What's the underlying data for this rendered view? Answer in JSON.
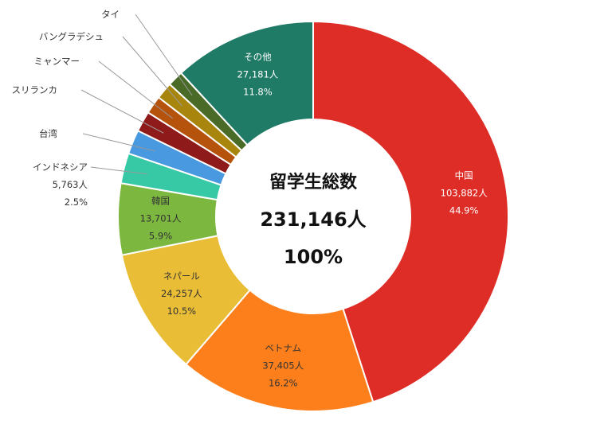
{
  "chart_data": {
    "type": "pie",
    "donut": true,
    "center": {
      "title": "留学生総数",
      "total": "231,146人",
      "percent": "100%"
    },
    "slices": [
      {
        "name": "中国",
        "count": "103,882人",
        "pct": "44.9%",
        "value": 44.9,
        "color": "#de2d26",
        "text_color": "#ffffff"
      },
      {
        "name": "ベトナム",
        "count": "37,405人",
        "pct": "16.2%",
        "value": 16.2,
        "color": "#fd7f1c",
        "text_color": "#333333"
      },
      {
        "name": "ネパール",
        "count": "24,257人",
        "pct": "10.5%",
        "value": 10.5,
        "color": "#e9bd35",
        "text_color": "#333333"
      },
      {
        "name": "韓国",
        "count": "13,701人",
        "pct": "5.9%",
        "value": 5.9,
        "color": "#7cb740",
        "text_color": "#333333"
      },
      {
        "name": "インドネシア",
        "count": "5,763人",
        "pct": "2.5%",
        "value": 2.5,
        "color": "#37c8a6",
        "text_color": "#333333"
      },
      {
        "name": "台湾",
        "count": "",
        "pct": "",
        "value": 2.0,
        "color": "#4899e0",
        "text_color": "#333333"
      },
      {
        "name": "スリランカ",
        "count": "",
        "pct": "",
        "value": 1.7,
        "color": "#8f1a1a",
        "text_color": "#333333"
      },
      {
        "name": "ミャンマー",
        "count": "",
        "pct": "",
        "value": 1.5,
        "color": "#b5530d",
        "text_color": "#333333"
      },
      {
        "name": "バングラデシュ",
        "count": "",
        "pct": "",
        "value": 1.4,
        "color": "#a8860e",
        "text_color": "#333333"
      },
      {
        "name": "タイ",
        "count": "",
        "pct": "",
        "value": 1.3,
        "color": "#4a6b27",
        "text_color": "#333333"
      },
      {
        "name": "その他",
        "count": "27,181人",
        "pct": "11.8%",
        "value": 11.8,
        "color": "#1f7a66",
        "text_color": "#ffffff"
      }
    ]
  }
}
